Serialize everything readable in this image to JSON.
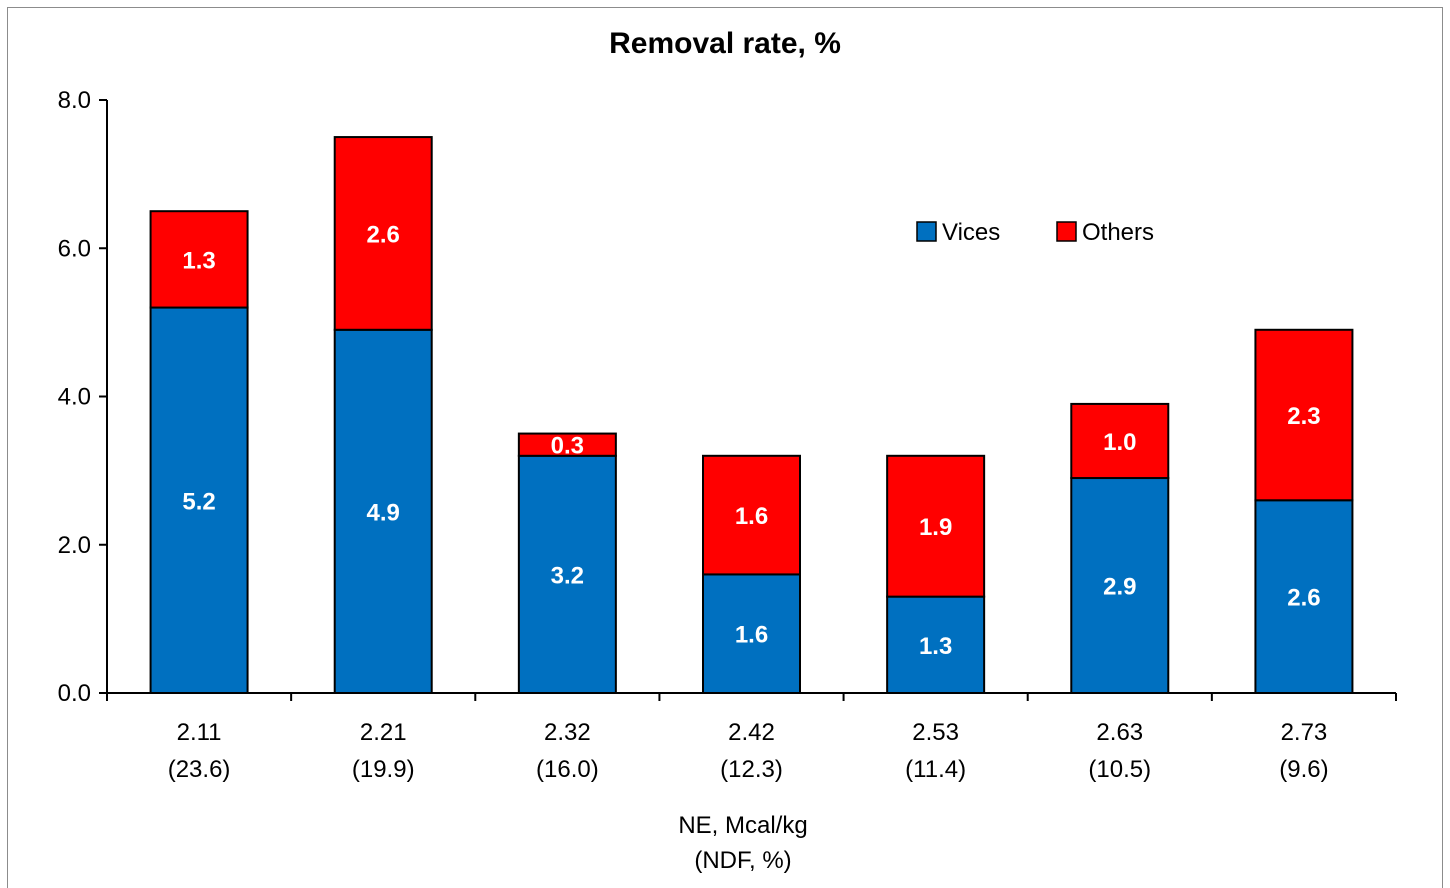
{
  "chart_data": {
    "type": "bar",
    "stacked": true,
    "title": "Removal rate, %",
    "xlabel_line1": "NE, Mcal/kg",
    "xlabel_line2": "(NDF, %)",
    "ylabel": "",
    "ylim": [
      0,
      8
    ],
    "yticks": [
      "0.0",
      "2.0",
      "4.0",
      "6.0",
      "8.0"
    ],
    "categories": [
      {
        "ne": "2.11",
        "ndf": "(23.6)"
      },
      {
        "ne": "2.21",
        "ndf": "(19.9)"
      },
      {
        "ne": "2.32",
        "ndf": "(16.0)"
      },
      {
        "ne": "2.42",
        "ndf": "(12.3)"
      },
      {
        "ne": "2.53",
        "ndf": "(11.4)"
      },
      {
        "ne": "2.63",
        "ndf": "(10.5)"
      },
      {
        "ne": "2.73",
        "ndf": "(9.6)"
      }
    ],
    "series": [
      {
        "name": "Vices",
        "color": "#0070c0",
        "values": [
          5.2,
          4.9,
          3.2,
          1.6,
          1.3,
          2.9,
          2.6
        ],
        "labels": [
          "5.2",
          "4.9",
          "3.2",
          "1.6",
          "1.3",
          "2.9",
          "2.6"
        ]
      },
      {
        "name": "Others",
        "color": "#ff0000",
        "values": [
          1.3,
          2.6,
          0.3,
          1.6,
          1.9,
          1.0,
          2.3
        ],
        "labels": [
          "1.3",
          "2.6",
          "0.3",
          "1.6",
          "1.9",
          "1.0",
          "2.3"
        ]
      }
    ],
    "legend_position": "top-right",
    "grid": false
  }
}
